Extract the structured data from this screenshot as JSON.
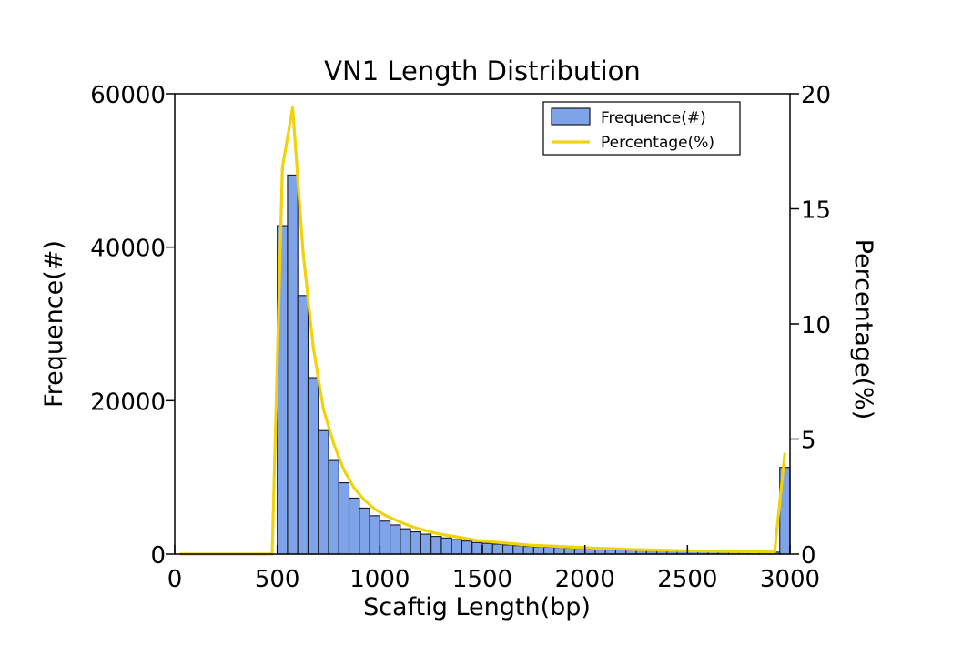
{
  "chart_data": {
    "type": "bar",
    "title": "VN1 Length Distribution",
    "xlabel": "Scaftig Length(bp)",
    "ylabel": "Frequence(#)",
    "y2label": "Percentage(%)",
    "xlim": [
      0,
      3000
    ],
    "ylim": [
      0,
      60000
    ],
    "y2lim": [
      0,
      20
    ],
    "x_ticks": [
      "0",
      "500",
      "1000",
      "1500",
      "2000",
      "2500",
      "3000"
    ],
    "y_ticks": [
      "0",
      "20000",
      "40000",
      "60000"
    ],
    "y2_ticks": [
      "0",
      "5",
      "10",
      "15",
      "20"
    ],
    "grid": false,
    "legend_position": "top-right",
    "colors": {
      "bars": "#7fa3e8",
      "bar_edge": "#1a1a1a",
      "line": "#f2d20a"
    },
    "series": [
      {
        "name": "Frequence(#)",
        "type": "bar",
        "bin_width": 50,
        "bin_starts": [
          500,
          550,
          600,
          650,
          700,
          750,
          800,
          850,
          900,
          950,
          1000,
          1050,
          1100,
          1150,
          1200,
          1250,
          1300,
          1350,
          1400,
          1450,
          1500,
          1550,
          1600,
          1650,
          1700,
          1750,
          1800,
          1850,
          1900,
          1950,
          2000,
          2050,
          2100,
          2150,
          2200,
          2250,
          2300,
          2350,
          2400,
          2450,
          2500,
          2550,
          2600,
          2650,
          2700,
          2750,
          2800,
          2850,
          2900,
          2950
        ],
        "values": [
          42800,
          49400,
          33700,
          23000,
          16100,
          12200,
          9300,
          7300,
          6000,
          5000,
          4300,
          3800,
          3300,
          2900,
          2600,
          2300,
          2100,
          1900,
          1700,
          1500,
          1400,
          1300,
          1200,
          1100,
          1000,
          950,
          900,
          850,
          800,
          750,
          700,
          650,
          600,
          560,
          520,
          490,
          460,
          430,
          400,
          380,
          360,
          340,
          320,
          300,
          290,
          280,
          270,
          260,
          250,
          11300
        ]
      },
      {
        "name": "Percentage(%)",
        "type": "line",
        "x": [
          25,
          450,
          475,
          525,
          575,
          625,
          675,
          725,
          775,
          825,
          875,
          925,
          975,
          1025,
          1075,
          1125,
          1175,
          1225,
          1275,
          1325,
          1375,
          1425,
          1475,
          1525,
          1575,
          1625,
          1675,
          1725,
          1775,
          1825,
          1875,
          1925,
          1975,
          2025,
          2075,
          2125,
          2175,
          2225,
          2275,
          2325,
          2375,
          2425,
          2475,
          2525,
          2575,
          2625,
          2675,
          2725,
          2775,
          2825,
          2875,
          2925,
          2975
        ],
        "values": [
          0,
          0,
          0,
          16.8,
          19.4,
          13.2,
          9.0,
          6.3,
          4.8,
          3.65,
          2.87,
          2.35,
          1.96,
          1.69,
          1.49,
          1.3,
          1.14,
          1.02,
          0.9,
          0.82,
          0.75,
          0.67,
          0.59,
          0.55,
          0.51,
          0.47,
          0.43,
          0.39,
          0.37,
          0.35,
          0.33,
          0.31,
          0.29,
          0.27,
          0.25,
          0.24,
          0.22,
          0.2,
          0.19,
          0.18,
          0.17,
          0.16,
          0.15,
          0.14,
          0.13,
          0.12,
          0.12,
          0.11,
          0.11,
          0.1,
          0.1,
          0.1,
          4.4
        ]
      }
    ]
  }
}
